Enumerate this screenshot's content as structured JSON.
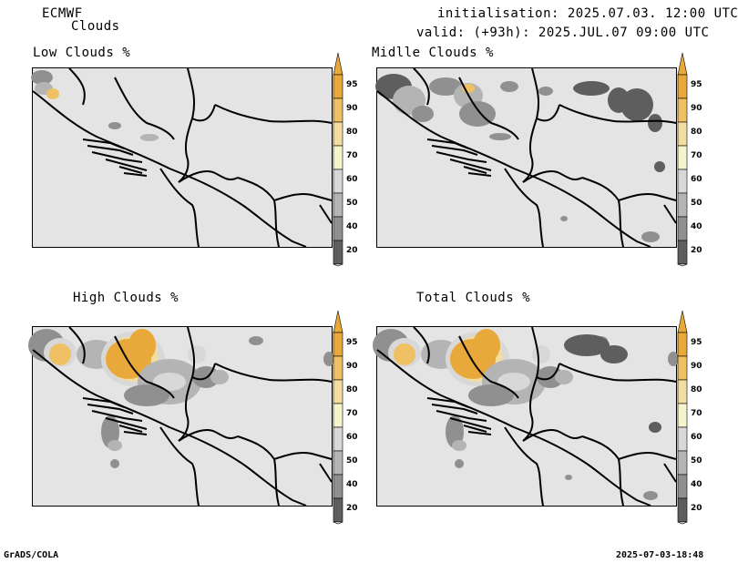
{
  "header": {
    "model": "ECMWF",
    "product": "Clouds",
    "init": "initialisation: 2025.07.03. 12:00 UTC",
    "valid": "valid: (+93h): 2025.JUL.07 09:00 UTC"
  },
  "panels": [
    {
      "key": "low",
      "title": "Low Clouds %"
    },
    {
      "key": "middle",
      "title": "Midlle Clouds %"
    },
    {
      "key": "high",
      "title": "High Clouds %"
    },
    {
      "key": "total",
      "title": "Total Clouds %"
    }
  ],
  "colorbar": {
    "labels": [
      "95",
      "90",
      "80",
      "70",
      "60",
      "50",
      "40",
      "20"
    ],
    "colors": {
      "c95": "#e8a83a",
      "c90": "#f0c064",
      "c80": "#f2dca0",
      "c70": "#f6f4cc",
      "c60": "#d8d8d8",
      "c50": "#b4b4b4",
      "c40": "#909090",
      "c20": "#5e5e5e",
      "below": "#e4e4e4"
    }
  },
  "footer": {
    "left": "GrADS/COLA",
    "right": "2025-07-03-18:48"
  }
}
